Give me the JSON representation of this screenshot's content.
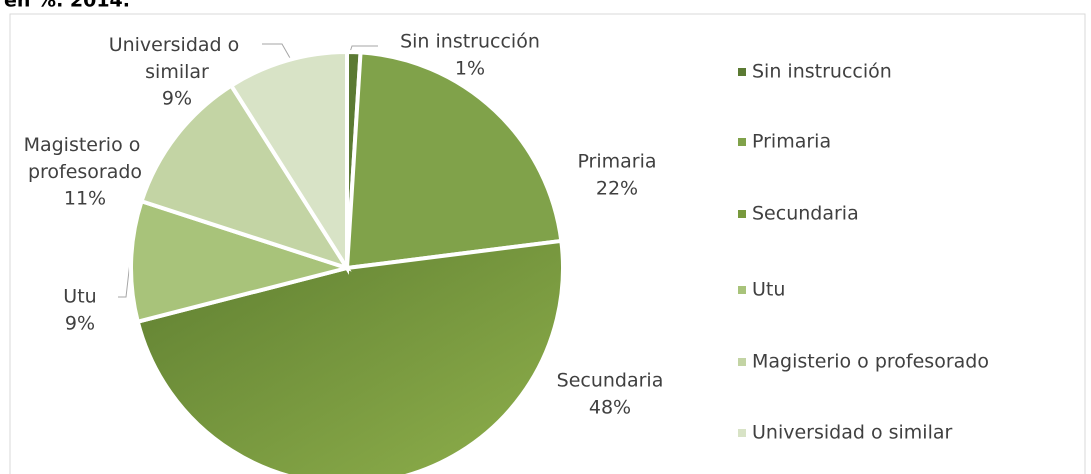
{
  "chart_data": {
    "type": "pie",
    "title": "en %. 2014.",
    "categories": [
      "Sin instrucción",
      "Primaria",
      "Secundaria",
      "Utu",
      "Magisterio o profesorado",
      "Universidad o similar"
    ],
    "values": [
      1,
      22,
      48,
      9,
      11,
      9
    ],
    "value_labels": [
      "1%",
      "22%",
      "48%",
      "9%",
      "11%",
      "9%"
    ],
    "colors": [
      "#5b7a33",
      "#80a24a",
      "#78993d",
      "#a8c37a",
      "#c3d4a4",
      "#d8e3c6"
    ],
    "legend": "right"
  }
}
